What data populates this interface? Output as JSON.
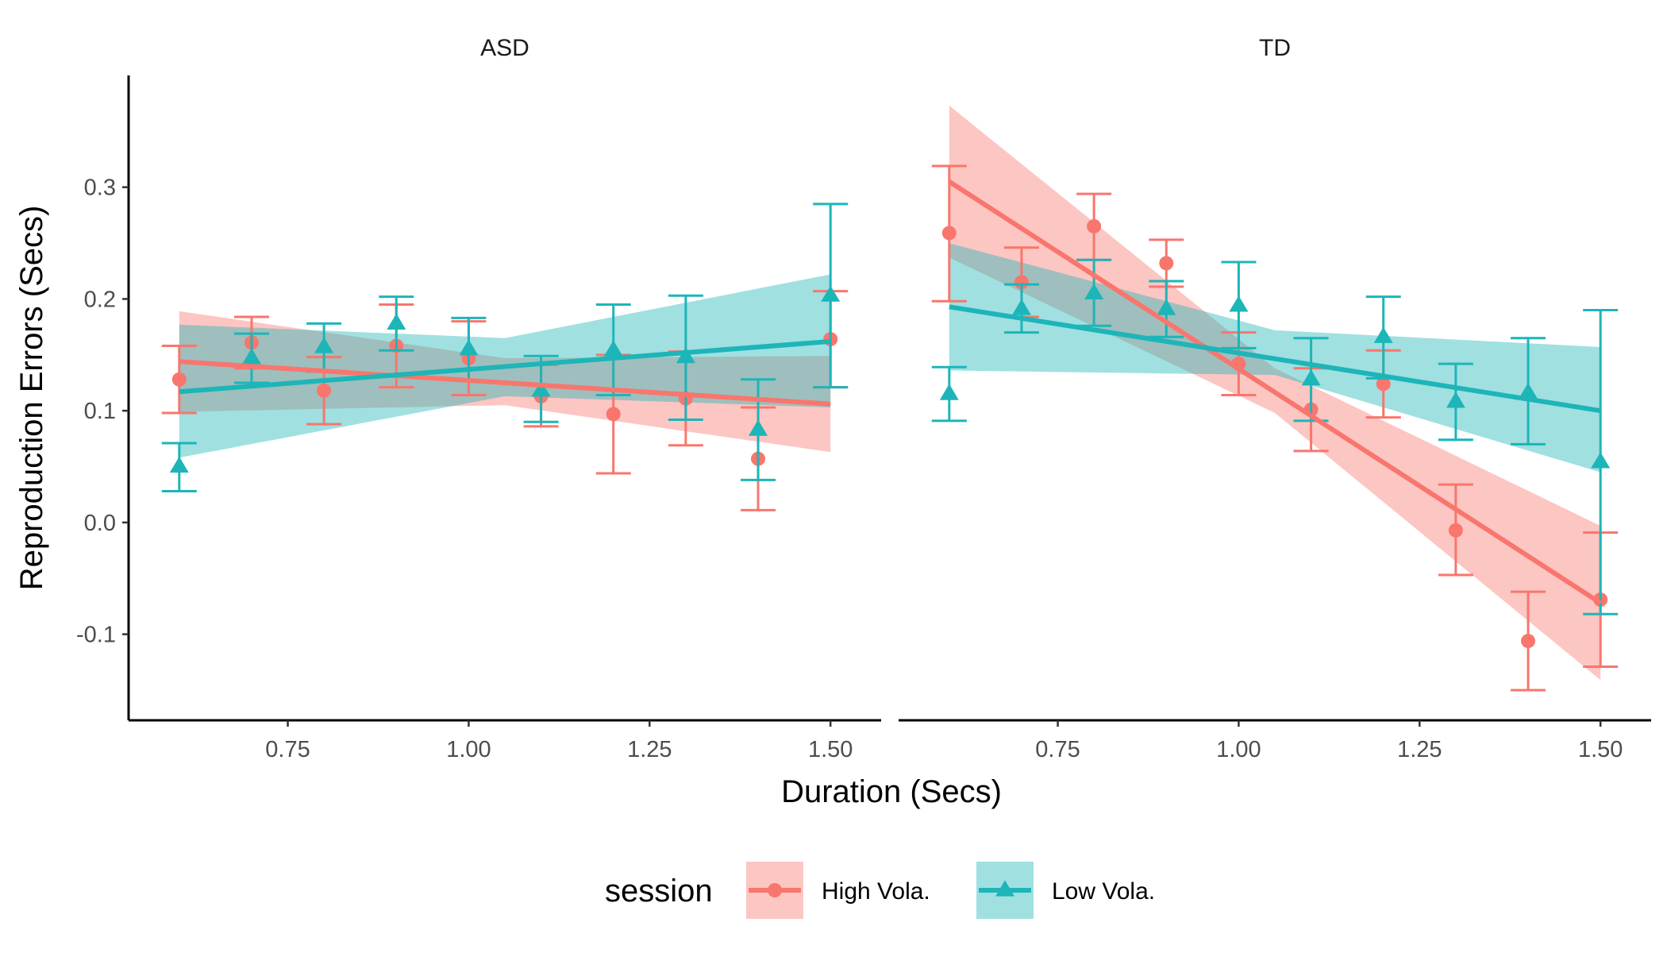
{
  "chart_data": {
    "type": "line",
    "xlabel": "Duration (Secs)",
    "ylabel": "Reproduction Errors (Secs)",
    "xlim": [
      0.53,
      1.57
    ],
    "ylim": [
      -0.177,
      0.4
    ],
    "x_ticks": [
      0.75,
      1.0,
      1.25,
      1.5
    ],
    "x_tick_labels": [
      "0.75",
      "1.00",
      "1.25",
      "1.50"
    ],
    "y_ticks": [
      -0.1,
      0.0,
      0.1,
      0.2,
      0.3
    ],
    "y_tick_labels": [
      "-0.1",
      "0.0",
      "0.1",
      "0.2",
      "0.3"
    ],
    "legend": {
      "title": "session",
      "position": "bottom",
      "entries": [
        {
          "name": "High Vola.",
          "color": "#F8766D",
          "shape": "circle"
        },
        {
          "name": "Low Vola.",
          "color": "#1DB5B8",
          "shape": "triangle"
        }
      ]
    },
    "panels": [
      {
        "strip": "ASD",
        "series": [
          {
            "name": "High Vola.",
            "color": "#F8766D",
            "shape": "circle",
            "x": [
              0.6,
              0.7,
              0.8,
              0.9,
              1.0,
              1.1,
              1.2,
              1.3,
              1.4,
              1.5
            ],
            "y": [
              0.128,
              0.161,
              0.118,
              0.158,
              0.147,
              0.113,
              0.097,
              0.111,
              0.057,
              0.164
            ],
            "ymin": [
              0.098,
              0.138,
              0.088,
              0.121,
              0.114,
              0.086,
              0.044,
              0.069,
              0.011,
              0.121
            ],
            "ymax": [
              0.158,
              0.184,
              0.148,
              0.195,
              0.18,
              0.141,
              0.15,
              0.153,
              0.103,
              0.207
            ],
            "fit": {
              "x": [
                0.6,
                1.5
              ],
              "y": [
                0.144,
                0.106
              ]
            },
            "band": {
              "x": [
                0.6,
                1.05,
                1.5
              ],
              "lower": [
                0.099,
                0.105,
                0.063
              ],
              "upper": [
                0.189,
                0.147,
                0.149
              ]
            }
          },
          {
            "name": "Low Vola.",
            "color": "#1DB5B8",
            "shape": "triangle",
            "x": [
              0.6,
              0.7,
              0.8,
              0.9,
              1.0,
              1.1,
              1.2,
              1.3,
              1.4,
              1.5
            ],
            "y": [
              0.05,
              0.147,
              0.157,
              0.178,
              0.155,
              0.118,
              0.154,
              0.148,
              0.083,
              0.203
            ],
            "ymin": [
              0.028,
              0.125,
              0.135,
              0.154,
              0.127,
              0.09,
              0.114,
              0.092,
              0.038,
              0.121
            ],
            "ymax": [
              0.071,
              0.169,
              0.178,
              0.202,
              0.183,
              0.149,
              0.195,
              0.203,
              0.128,
              0.285
            ],
            "fit": {
              "x": [
                0.6,
                1.5
              ],
              "y": [
                0.117,
                0.162
              ]
            },
            "band": {
              "x": [
                0.6,
                1.05,
                1.5
              ],
              "lower": [
                0.058,
                0.113,
                0.103
              ],
              "upper": [
                0.177,
                0.165,
                0.222
              ]
            }
          }
        ]
      },
      {
        "strip": "TD",
        "series": [
          {
            "name": "High Vola.",
            "color": "#F8766D",
            "shape": "circle",
            "x": [
              0.6,
              0.7,
              0.8,
              0.9,
              1.0,
              1.1,
              1.2,
              1.3,
              1.4,
              1.5
            ],
            "y": [
              0.259,
              0.215,
              0.265,
              0.232,
              0.142,
              0.101,
              0.124,
              -0.007,
              -0.106,
              -0.069
            ],
            "ymin": [
              0.198,
              0.184,
              0.235,
              0.211,
              0.114,
              0.064,
              0.094,
              -0.047,
              -0.15,
              -0.129
            ],
            "ymax": [
              0.319,
              0.246,
              0.294,
              0.253,
              0.17,
              0.138,
              0.154,
              0.034,
              -0.062,
              -0.009
            ],
            "fit": {
              "x": [
                0.6,
                1.5
              ],
              "y": [
                0.305,
                -0.072
              ]
            },
            "band": {
              "x": [
                0.6,
                1.05,
                1.5
              ],
              "lower": [
                0.237,
                0.098,
                -0.141
              ],
              "upper": [
                0.373,
                0.138,
                -0.003
              ]
            }
          },
          {
            "name": "Low Vola.",
            "color": "#1DB5B8",
            "shape": "triangle",
            "x": [
              0.6,
              0.7,
              0.8,
              0.9,
              1.0,
              1.1,
              1.2,
              1.3,
              1.4,
              1.5
            ],
            "y": [
              0.115,
              0.191,
              0.205,
              0.191,
              0.194,
              0.128,
              0.166,
              0.108,
              0.116,
              0.054
            ],
            "ymin": [
              0.091,
              0.17,
              0.176,
              0.166,
              0.156,
              0.091,
              0.129,
              0.074,
              0.07,
              -0.082
            ],
            "ymax": [
              0.139,
              0.213,
              0.235,
              0.216,
              0.233,
              0.165,
              0.202,
              0.142,
              0.165,
              0.19
            ],
            "fit": {
              "x": [
                0.6,
                1.5
              ],
              "y": [
                0.193,
                0.1
              ]
            },
            "band": {
              "x": [
                0.6,
                1.05,
                1.5
              ],
              "lower": [
                0.136,
                0.132,
                0.045
              ],
              "upper": [
                0.25,
                0.172,
                0.157
              ]
            }
          }
        ]
      }
    ]
  }
}
